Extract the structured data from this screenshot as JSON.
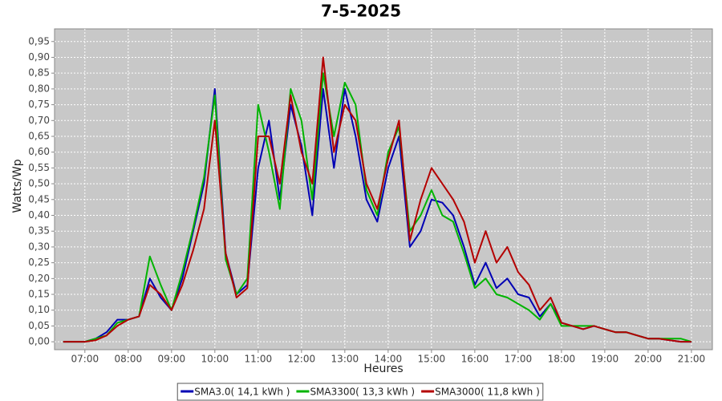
{
  "chart_data": {
    "type": "line",
    "title": "7-5-2025",
    "x_label": "Heures",
    "y_label": "Watts/Wp",
    "x": [
      "06:30",
      "06:45",
      "07:00",
      "07:15",
      "07:30",
      "07:45",
      "08:00",
      "08:15",
      "08:30",
      "08:45",
      "09:00",
      "09:15",
      "09:30",
      "09:45",
      "10:00",
      "10:15",
      "10:30",
      "10:45",
      "11:00",
      "11:15",
      "11:30",
      "11:45",
      "12:00",
      "12:15",
      "12:30",
      "12:45",
      "13:00",
      "13:15",
      "13:30",
      "13:45",
      "14:00",
      "14:15",
      "14:30",
      "14:45",
      "15:00",
      "15:15",
      "15:30",
      "15:45",
      "16:00",
      "16:15",
      "16:30",
      "16:45",
      "17:00",
      "17:15",
      "17:30",
      "17:45",
      "18:00",
      "18:15",
      "18:30",
      "18:45",
      "19:00",
      "19:15",
      "19:30",
      "19:45",
      "20:00",
      "20:15",
      "20:30",
      "20:45",
      "21:00"
    ],
    "series": [
      {
        "name": "SMA3.0( 14,1 kWh )",
        "color": "#0000b4",
        "values": [
          0,
          0,
          0,
          0.01,
          0.03,
          0.07,
          0.07,
          0.08,
          0.2,
          0.14,
          0.1,
          0.2,
          0.35,
          0.5,
          0.8,
          0.28,
          0.15,
          0.18,
          0.55,
          0.7,
          0.45,
          0.75,
          0.62,
          0.4,
          0.8,
          0.55,
          0.8,
          0.65,
          0.45,
          0.38,
          0.55,
          0.65,
          0.3,
          0.35,
          0.45,
          0.44,
          0.4,
          0.3,
          0.18,
          0.25,
          0.17,
          0.2,
          0.15,
          0.14,
          0.08,
          0.12,
          0.06,
          0.05,
          0.04,
          0.05,
          0.04,
          0.03,
          0.03,
          0.02,
          0.01,
          0.01,
          0.005,
          0,
          0
        ]
      },
      {
        "name": "SMA3300( 13,3 kWh )",
        "color": "#00b400",
        "values": [
          0,
          0,
          0,
          0.01,
          0.02,
          0.06,
          0.07,
          0.08,
          0.27,
          0.18,
          0.1,
          0.22,
          0.36,
          0.52,
          0.78,
          0.26,
          0.15,
          0.2,
          0.75,
          0.6,
          0.42,
          0.8,
          0.7,
          0.45,
          0.85,
          0.65,
          0.82,
          0.75,
          0.48,
          0.4,
          0.6,
          0.68,
          0.35,
          0.4,
          0.48,
          0.4,
          0.38,
          0.28,
          0.17,
          0.2,
          0.15,
          0.14,
          0.12,
          0.1,
          0.07,
          0.12,
          0.05,
          0.05,
          0.05,
          0.05,
          0.04,
          0.03,
          0.03,
          0.02,
          0.01,
          0.01,
          0.01,
          0.01,
          0
        ]
      },
      {
        "name": "SMA3000( 11,8 kWh )",
        "color": "#b40000",
        "values": [
          0,
          0,
          0,
          0.005,
          0.02,
          0.05,
          0.07,
          0.08,
          0.18,
          0.15,
          0.1,
          0.18,
          0.29,
          0.42,
          0.7,
          0.28,
          0.14,
          0.17,
          0.65,
          0.65,
          0.5,
          0.78,
          0.6,
          0.5,
          0.9,
          0.6,
          0.75,
          0.7,
          0.5,
          0.42,
          0.58,
          0.7,
          0.32,
          0.45,
          0.55,
          0.5,
          0.45,
          0.38,
          0.25,
          0.35,
          0.25,
          0.3,
          0.22,
          0.18,
          0.1,
          0.14,
          0.06,
          0.05,
          0.04,
          0.05,
          0.04,
          0.03,
          0.03,
          0.02,
          0.01,
          0.01,
          0.005,
          0,
          0
        ]
      }
    ],
    "xlim": [
      "06:18",
      "21:29"
    ],
    "xticks": [
      "07:00",
      "08:00",
      "09:00",
      "10:00",
      "11:00",
      "12:00",
      "13:00",
      "14:00",
      "15:00",
      "16:00",
      "17:00",
      "18:00",
      "19:00",
      "20:00",
      "21:00"
    ],
    "ylim": [
      -0.025,
      0.99
    ],
    "yticks": [
      {
        "value": 0,
        "label": "0,00"
      },
      {
        "value": 0.05,
        "label": "0,05"
      },
      {
        "value": 0.1,
        "label": "0,10"
      },
      {
        "value": 0.15,
        "label": "0,15"
      },
      {
        "value": 0.2,
        "label": "0,20"
      },
      {
        "value": 0.25,
        "label": "0,25"
      },
      {
        "value": 0.3,
        "label": "0,30"
      },
      {
        "value": 0.35,
        "label": "0,35"
      },
      {
        "value": 0.4,
        "label": "0,40"
      },
      {
        "value": 0.45,
        "label": "0,45"
      },
      {
        "value": 0.5,
        "label": "0,50"
      },
      {
        "value": 0.55,
        "label": "0,55"
      },
      {
        "value": 0.6,
        "label": "0,60"
      },
      {
        "value": 0.65,
        "label": "0,65"
      },
      {
        "value": 0.7,
        "label": "0,70"
      },
      {
        "value": 0.75,
        "label": "0,75"
      },
      {
        "value": 0.8,
        "label": "0,80"
      },
      {
        "value": 0.85,
        "label": "0,85"
      },
      {
        "value": 0.9,
        "label": "0,90"
      },
      {
        "value": 0.95,
        "label": "0,95"
      }
    ],
    "grid": true
  }
}
